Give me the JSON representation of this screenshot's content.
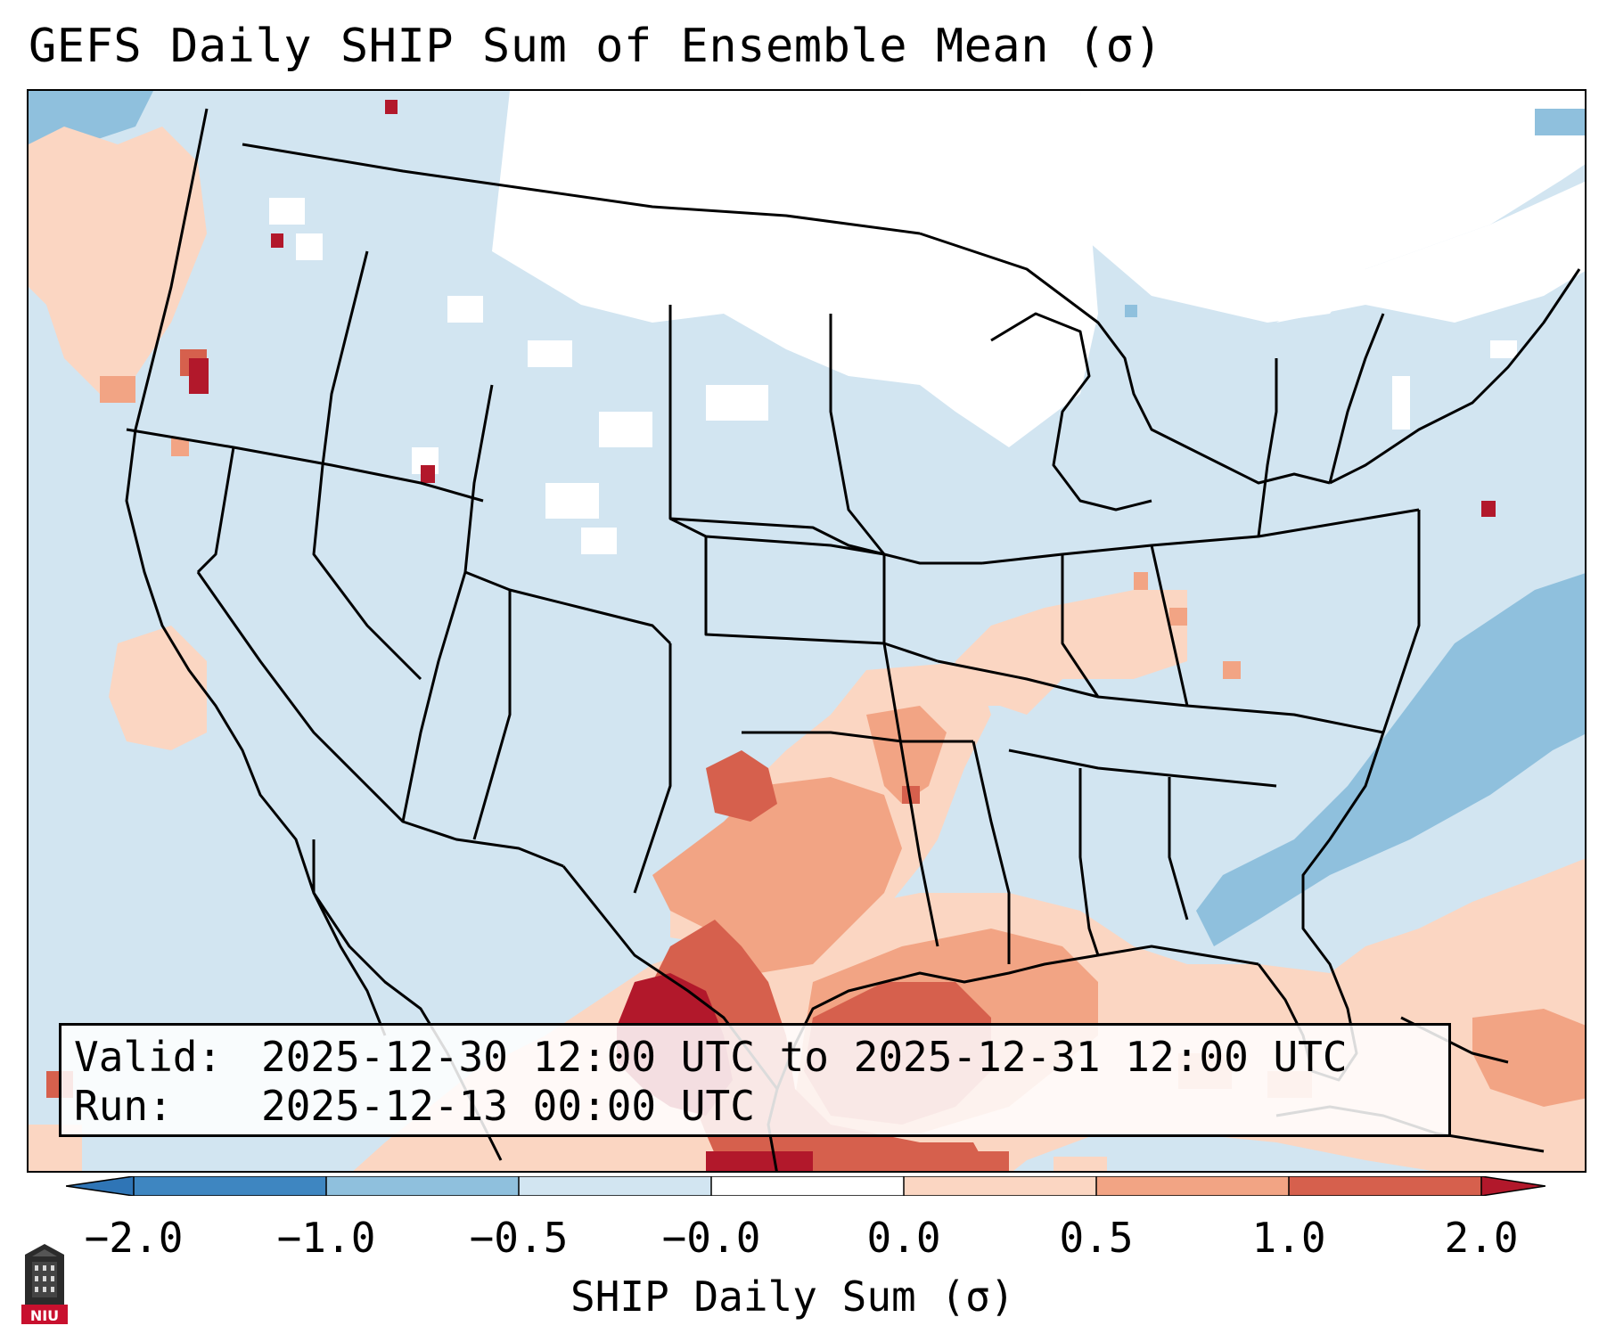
{
  "title": "GEFS Daily SHIP Sum of Ensemble Mean (σ)",
  "info": {
    "valid_key": "Valid:",
    "valid_value": "2025-12-30 12:00 UTC to 2025-12-31 12:00 UTC",
    "run_key": "Run:",
    "run_value": "2025-12-13 00:00 UTC"
  },
  "colorbar": {
    "label": "SHIP Daily Sum (σ)",
    "ticks": [
      "−2.0",
      "−1.0",
      "−0.5",
      "−0.0",
      "0.0",
      "0.5",
      "1.0",
      "2.0"
    ],
    "bins": [
      {
        "range": "< -2.0",
        "color": "#2f75b6"
      },
      {
        "range": "-2.0 to -1.0",
        "color": "#3e86c1"
      },
      {
        "range": "-1.0 to -0.5",
        "color": "#8fc0dd"
      },
      {
        "range": "-0.5 to -0.0",
        "color": "#d2e5f1"
      },
      {
        "range": "-0.0 to 0.0",
        "color": "#ffffff"
      },
      {
        "range": "0.0 to 0.5",
        "color": "#fbd6c2"
      },
      {
        "range": "0.5 to 1.0",
        "color": "#f2a484"
      },
      {
        "range": "1.0 to 2.0",
        "color": "#d6604d"
      },
      {
        "range": "> 2.0",
        "color": "#b2182b"
      }
    ]
  },
  "logo": {
    "text": "NIU",
    "color": "#c8102e"
  }
}
